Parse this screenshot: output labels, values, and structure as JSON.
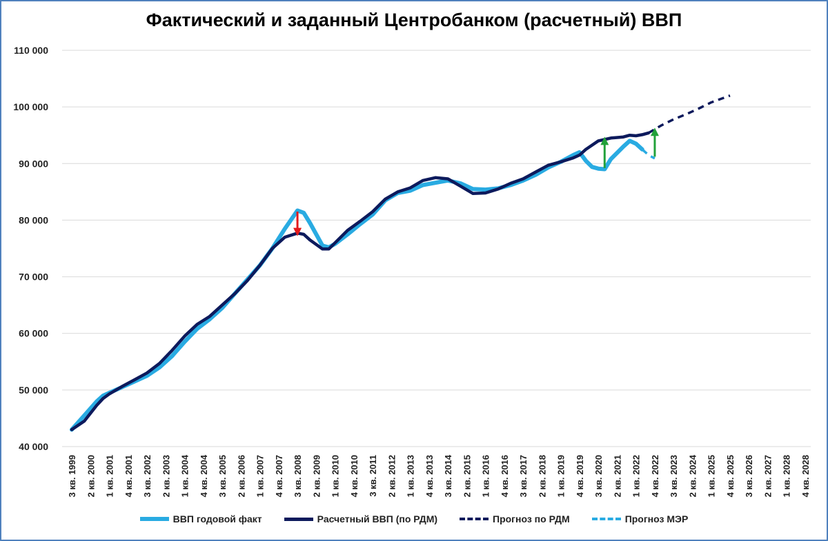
{
  "chart_data": {
    "type": "line",
    "title": "Фактический и заданный Центробанком (расчетный) ВВП",
    "ylim": [
      40000,
      110000
    ],
    "yticks": [
      "40 000",
      "50 000",
      "60 000",
      "70 000",
      "80 000",
      "90 000",
      "100 000",
      "110 000"
    ],
    "ytick_values": [
      40000,
      50000,
      60000,
      70000,
      80000,
      90000,
      100000,
      110000
    ],
    "x_range": [
      1999.5,
      2028.75
    ],
    "xticks": [
      {
        "label": "3 кв. 1999",
        "x": 1999.5
      },
      {
        "label": "2 кв. 2000",
        "x": 2000.25
      },
      {
        "label": "1 кв. 2001",
        "x": 2001.0
      },
      {
        "label": "4 кв. 2001",
        "x": 2001.75
      },
      {
        "label": "3 кв. 2002",
        "x": 2002.5
      },
      {
        "label": "2 кв. 2003",
        "x": 2003.25
      },
      {
        "label": "1 кв. 2004",
        "x": 2004.0
      },
      {
        "label": "4 кв. 2004",
        "x": 2004.75
      },
      {
        "label": "3 кв. 2005",
        "x": 2005.5
      },
      {
        "label": "2 кв. 2006",
        "x": 2006.25
      },
      {
        "label": "1 кв. 2007",
        "x": 2007.0
      },
      {
        "label": "4 кв. 2007",
        "x": 2007.75
      },
      {
        "label": "3 кв. 2008",
        "x": 2008.5
      },
      {
        "label": "2 кв. 2009",
        "x": 2009.25
      },
      {
        "label": "1 кв. 2010",
        "x": 2010.0
      },
      {
        "label": "4 кв. 2010",
        "x": 2010.75
      },
      {
        "label": "3 кв. 2011",
        "x": 2011.5
      },
      {
        "label": "2 кв. 2012",
        "x": 2012.25
      },
      {
        "label": "1 кв. 2013",
        "x": 2013.0
      },
      {
        "label": "4 кв. 2013",
        "x": 2013.75
      },
      {
        "label": "3 кв. 2014",
        "x": 2014.5
      },
      {
        "label": "2 кв. 2015",
        "x": 2015.25
      },
      {
        "label": "1 кв. 2016",
        "x": 2016.0
      },
      {
        "label": "4 кв. 2016",
        "x": 2016.75
      },
      {
        "label": "3 кв. 2017",
        "x": 2017.5
      },
      {
        "label": "2 кв. 2018",
        "x": 2018.25
      },
      {
        "label": "1 кв. 2019",
        "x": 2019.0
      },
      {
        "label": "4 кв. 2019",
        "x": 2019.75
      },
      {
        "label": "3 кв. 2020",
        "x": 2020.5
      },
      {
        "label": "2 кв. 2021",
        "x": 2021.25
      },
      {
        "label": "1 кв. 2022",
        "x": 2022.0
      },
      {
        "label": "4 кв. 2022",
        "x": 2022.75
      },
      {
        "label": "3 кв. 2023",
        "x": 2023.5
      },
      {
        "label": "2 кв. 2024",
        "x": 2024.25
      },
      {
        "label": "1 кв. 2025",
        "x": 2025.0
      },
      {
        "label": "4 кв. 2025",
        "x": 2025.75
      },
      {
        "label": "3 кв. 2026",
        "x": 2026.5
      },
      {
        "label": "2 кв. 2027",
        "x": 2027.25
      },
      {
        "label": "1 кв. 2028",
        "x": 2028.0
      },
      {
        "label": "4 кв. 2028",
        "x": 2028.75
      }
    ],
    "grid": true,
    "legend_position": "bottom",
    "series": [
      {
        "name": "ВВП годовой факт",
        "color": "#29abe2",
        "dash": "solid",
        "points": [
          [
            1999.5,
            43000
          ],
          [
            2000.0,
            45500
          ],
          [
            2000.5,
            48000
          ],
          [
            2000.75,
            49000
          ],
          [
            2001.0,
            49500
          ],
          [
            2001.5,
            50500
          ],
          [
            2002.0,
            51500
          ],
          [
            2002.5,
            52500
          ],
          [
            2003.0,
            54000
          ],
          [
            2003.5,
            56000
          ],
          [
            2004.0,
            58500
          ],
          [
            2004.5,
            60800
          ],
          [
            2005.0,
            62500
          ],
          [
            2005.5,
            64500
          ],
          [
            2006.0,
            67000
          ],
          [
            2006.5,
            69500
          ],
          [
            2007.0,
            72000
          ],
          [
            2007.5,
            75000
          ],
          [
            2008.0,
            78500
          ],
          [
            2008.5,
            81700
          ],
          [
            2008.75,
            81300
          ],
          [
            2009.0,
            79500
          ],
          [
            2009.5,
            75500
          ],
          [
            2009.75,
            75200
          ],
          [
            2010.0,
            75800
          ],
          [
            2010.5,
            77500
          ],
          [
            2011.0,
            79300
          ],
          [
            2011.5,
            81000
          ],
          [
            2012.0,
            83500
          ],
          [
            2012.5,
            84800
          ],
          [
            2013.0,
            85200
          ],
          [
            2013.5,
            86200
          ],
          [
            2014.0,
            86600
          ],
          [
            2014.5,
            87000
          ],
          [
            2015.0,
            86500
          ],
          [
            2015.5,
            85500
          ],
          [
            2016.0,
            85400
          ],
          [
            2016.5,
            85600
          ],
          [
            2017.0,
            86200
          ],
          [
            2017.5,
            87000
          ],
          [
            2018.0,
            88000
          ],
          [
            2018.5,
            89300
          ],
          [
            2019.0,
            90300
          ],
          [
            2019.5,
            91500
          ],
          [
            2019.75,
            92000
          ],
          [
            2020.0,
            90500
          ],
          [
            2020.25,
            89400
          ],
          [
            2020.5,
            89100
          ],
          [
            2020.75,
            89000
          ],
          [
            2021.0,
            90800
          ],
          [
            2021.25,
            91900
          ],
          [
            2021.5,
            93000
          ],
          [
            2021.75,
            94000
          ],
          [
            2022.0,
            93500
          ],
          [
            2022.25,
            92500
          ]
        ]
      },
      {
        "name": "Расчетный ВВП (по РДМ)",
        "color": "#0d1a5c",
        "dash": "solid",
        "points": [
          [
            1999.5,
            43000
          ],
          [
            2000.0,
            44500
          ],
          [
            2000.5,
            47300
          ],
          [
            2000.75,
            48500
          ],
          [
            2001.0,
            49300
          ],
          [
            2001.5,
            50600
          ],
          [
            2002.0,
            51800
          ],
          [
            2002.5,
            53000
          ],
          [
            2003.0,
            54700
          ],
          [
            2003.5,
            57000
          ],
          [
            2004.0,
            59500
          ],
          [
            2004.5,
            61600
          ],
          [
            2005.0,
            63000
          ],
          [
            2005.5,
            65000
          ],
          [
            2006.0,
            67000
          ],
          [
            2006.5,
            69300
          ],
          [
            2007.0,
            72000
          ],
          [
            2007.5,
            75000
          ],
          [
            2008.0,
            77000
          ],
          [
            2008.5,
            77700
          ],
          [
            2008.75,
            77500
          ],
          [
            2009.0,
            76500
          ],
          [
            2009.5,
            74900
          ],
          [
            2009.75,
            74900
          ],
          [
            2010.0,
            76000
          ],
          [
            2010.5,
            78200
          ],
          [
            2011.0,
            79800
          ],
          [
            2011.5,
            81500
          ],
          [
            2012.0,
            83700
          ],
          [
            2012.5,
            85000
          ],
          [
            2013.0,
            85700
          ],
          [
            2013.5,
            87000
          ],
          [
            2014.0,
            87500
          ],
          [
            2014.5,
            87300
          ],
          [
            2015.0,
            86000
          ],
          [
            2015.5,
            84700
          ],
          [
            2016.0,
            84800
          ],
          [
            2016.5,
            85500
          ],
          [
            2017.0,
            86500
          ],
          [
            2017.5,
            87300
          ],
          [
            2018.0,
            88500
          ],
          [
            2018.5,
            89700
          ],
          [
            2019.0,
            90300
          ],
          [
            2019.5,
            91000
          ],
          [
            2019.75,
            91500
          ],
          [
            2020.0,
            92500
          ],
          [
            2020.5,
            94000
          ],
          [
            2021.0,
            94500
          ],
          [
            2021.5,
            94700
          ],
          [
            2021.75,
            95000
          ],
          [
            2022.0,
            94900
          ],
          [
            2022.25,
            95100
          ],
          [
            2022.5,
            95400
          ]
        ]
      },
      {
        "name": "Прогноз по РДМ",
        "color": "#0d1a5c",
        "dash": "dashed",
        "points": [
          [
            2022.5,
            95400
          ],
          [
            2023.0,
            96700
          ],
          [
            2023.5,
            97800
          ],
          [
            2024.0,
            98700
          ],
          [
            2024.5,
            99700
          ],
          [
            2025.0,
            100800
          ],
          [
            2025.5,
            101600
          ],
          [
            2025.75,
            102000
          ]
        ]
      },
      {
        "name": "Прогноз МЭР",
        "color": "#29abe2",
        "dash": "dashed",
        "points": [
          [
            2022.25,
            92500
          ],
          [
            2022.5,
            91500
          ],
          [
            2022.75,
            90900
          ]
        ]
      }
    ],
    "annotations": [
      {
        "type": "arrow",
        "direction": "down",
        "color": "#e31a1c",
        "x": 2008.5,
        "from": 81500,
        "to": 77900
      },
      {
        "type": "arrow",
        "direction": "up",
        "color": "#22a13a",
        "x": 2020.75,
        "from": 89200,
        "to": 94000
      },
      {
        "type": "arrow",
        "direction": "up",
        "color": "#22a13a",
        "x": 2022.75,
        "from": 91200,
        "to": 95600
      }
    ]
  }
}
